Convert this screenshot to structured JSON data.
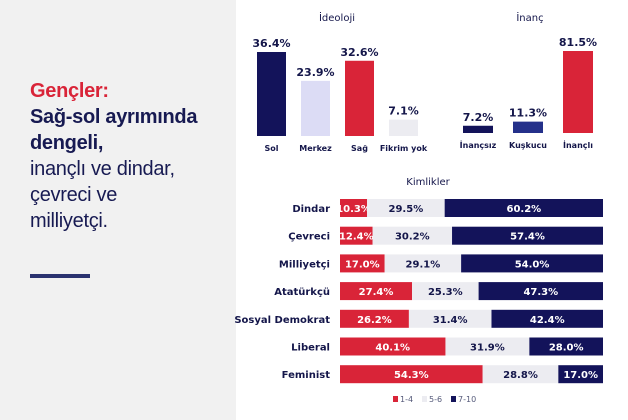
{
  "headline": {
    "line1": "Gençler:",
    "line2": "Sağ-sol ayrımında",
    "line3": "dengeli,",
    "line4": "inançlı ve dindar,",
    "line5": "çevreci ve",
    "line6": "milliyetçi."
  },
  "colors": {
    "red": "#d92438",
    "navy": "#13135a",
    "lavender": "#dcdcf5",
    "light_gray": "#ececf1",
    "blue": "#24308a",
    "text": "#14164a"
  },
  "chart_data": [
    {
      "type": "bar",
      "title": "İdeoloji",
      "categories": [
        "Sol",
        "Merkez",
        "Sağ",
        "Fikrim yok"
      ],
      "values": [
        36.4,
        23.9,
        32.6,
        7.1
      ],
      "labels": [
        "36.4%",
        "23.9%",
        "32.6%",
        "7.1%"
      ],
      "bar_colors": [
        "#13135a",
        "#dcdcf5",
        "#d92438",
        "#ececf1"
      ],
      "ylim": [
        0,
        36.4
      ],
      "xlabel": "",
      "ylabel": ""
    },
    {
      "type": "bar",
      "title": "İnanç",
      "categories": [
        "İnançsız",
        "Kuşkucu",
        "İnançlı"
      ],
      "values": [
        7.2,
        11.3,
        81.5
      ],
      "labels": [
        "7.2%",
        "11.3%",
        "81.5%"
      ],
      "bar_colors": [
        "#13135a",
        "#24308a",
        "#d92438"
      ],
      "ylim": [
        0,
        81.5
      ],
      "xlabel": "",
      "ylabel": ""
    },
    {
      "type": "bar",
      "orientation": "horizontal-stacked",
      "title": "Kimlikler",
      "categories": [
        "Dindar",
        "Çevreci",
        "Milliyetçi",
        "Atatürkçü",
        "Sosyal Demokrat",
        "Liberal",
        "Feminist"
      ],
      "series": [
        {
          "name": "1-4",
          "color": "#d92438",
          "text_color": "#ffffff",
          "values": [
            10.3,
            12.4,
            17.0,
            27.4,
            26.2,
            40.1,
            54.3
          ],
          "labels": [
            "10.3%",
            "12.4%",
            "17.0%",
            "27.4%",
            "26.2%",
            "40.1%",
            "54.3%"
          ]
        },
        {
          "name": "5-6",
          "color": "#ececf1",
          "text_color": "#14164a",
          "values": [
            29.5,
            30.2,
            29.1,
            25.3,
            31.4,
            31.9,
            28.8
          ],
          "labels": [
            "29.5%",
            "30.2%",
            "29.1%",
            "25.3%",
            "31.4%",
            "31.9%",
            "28.8%"
          ]
        },
        {
          "name": "7-10",
          "color": "#13135a",
          "text_color": "#ffffff",
          "values": [
            60.2,
            57.4,
            54.0,
            47.3,
            42.4,
            28.0,
            17.0
          ],
          "labels": [
            "60.2%",
            "57.4%",
            "54.0%",
            "47.3%",
            "42.4%",
            "28.0%",
            "17.0%"
          ]
        }
      ],
      "xlim": [
        0,
        100
      ],
      "legend": {
        "position": "bottom",
        "entries": [
          "1-4",
          "5-6",
          "7-10"
        ]
      }
    }
  ]
}
